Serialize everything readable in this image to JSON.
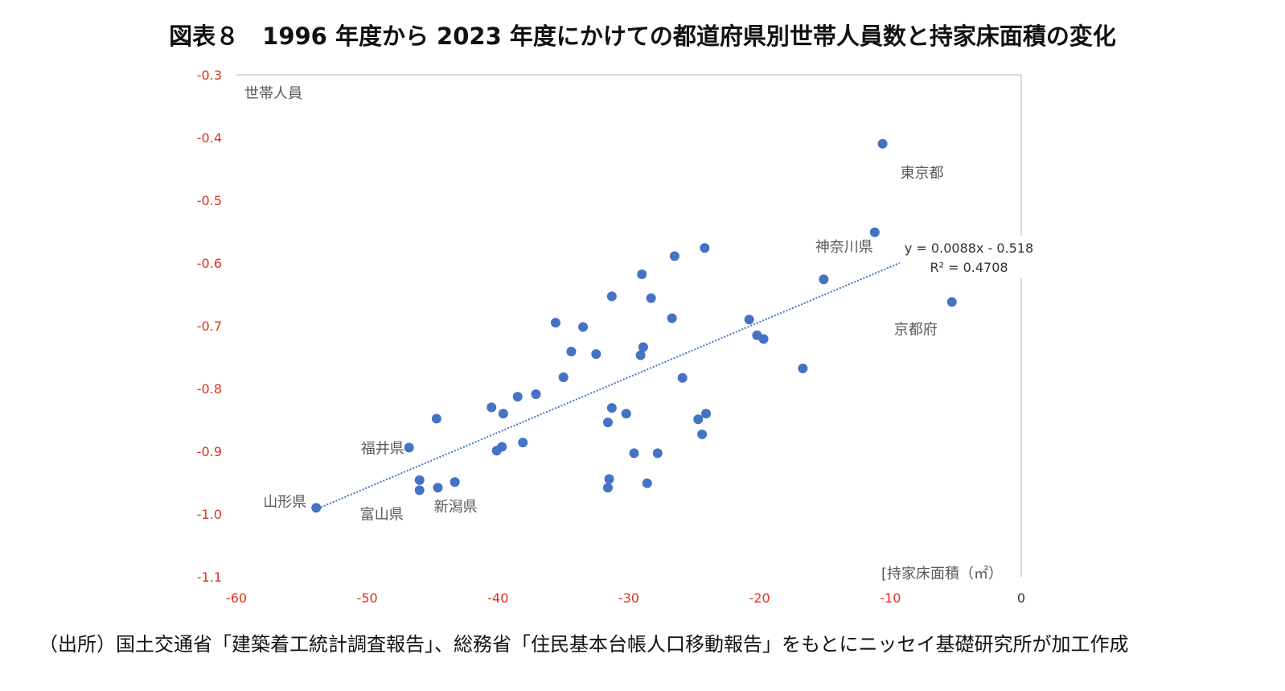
{
  "title": "図表８　1996 年度から 2023 年度にかけての都道府県別世帯人員数と持家床面積の変化",
  "source": "（出所）国土交通省「建築着工統計調査報告」、総務省「住民基本台帳人口移動報告」をもとにニッセイ基礎研究所が加工作成",
  "colors": {
    "point": "#4472C4",
    "trendline": "#4472C4",
    "tick_label": "#E0301E",
    "axis_line": "#D9D9D9",
    "annotation": "#595959"
  },
  "chart_data": {
    "type": "scatter",
    "title": "1996 年度から 2023 年度にかけての都道府県別世帯人員数と持家床面積の変化",
    "xlabel": "[持家床面積（㎡）",
    "ylabel": "世帯人員",
    "xlim": [
      -60,
      0
    ],
    "ylim": [
      -1.1,
      -0.3
    ],
    "x_ticks": [
      "-60",
      "-50",
      "-40",
      "-30",
      "-20",
      "-10",
      "0"
    ],
    "y_ticks": [
      "-0.3",
      "-0.4",
      "-0.5",
      "-0.6",
      "-0.7",
      "-0.8",
      "-0.9",
      "-1.0",
      "-1.1"
    ],
    "grid": false,
    "legend": null,
    "trendline": {
      "type": "linear",
      "equation": "y = 0.0088x - 0.518",
      "r_squared": "R² = 0.4708",
      "slope": 0.0088,
      "intercept": -0.518,
      "x_range": [
        -54,
        -9.3
      ]
    },
    "labels": [
      {
        "text": "東京都",
        "x": -10.6,
        "y": -0.41
      },
      {
        "text": "神奈川県",
        "x": -11.2,
        "y": -0.551
      },
      {
        "text": "京都府",
        "x": -5.3,
        "y": -0.662
      },
      {
        "text": "福井県",
        "x": -46.8,
        "y": -0.894
      },
      {
        "text": "山形県",
        "x": -53.9,
        "y": -0.99
      },
      {
        "text": "富山県",
        "x": -46.0,
        "y": -0.962
      },
      {
        "text": "新潟県",
        "x": -43.3,
        "y": -0.949
      }
    ],
    "points": [
      {
        "x": -10.6,
        "y": -0.41
      },
      {
        "x": -11.2,
        "y": -0.551
      },
      {
        "x": -24.2,
        "y": -0.576
      },
      {
        "x": -26.5,
        "y": -0.589
      },
      {
        "x": -29.0,
        "y": -0.618
      },
      {
        "x": -15.1,
        "y": -0.626
      },
      {
        "x": -31.3,
        "y": -0.653
      },
      {
        "x": -28.3,
        "y": -0.656
      },
      {
        "x": -5.3,
        "y": -0.662
      },
      {
        "x": -26.7,
        "y": -0.688
      },
      {
        "x": -20.8,
        "y": -0.69
      },
      {
        "x": -35.6,
        "y": -0.695
      },
      {
        "x": -33.5,
        "y": -0.702
      },
      {
        "x": -20.2,
        "y": -0.715
      },
      {
        "x": -19.7,
        "y": -0.721
      },
      {
        "x": -28.9,
        "y": -0.734
      },
      {
        "x": -34.4,
        "y": -0.741
      },
      {
        "x": -32.5,
        "y": -0.745
      },
      {
        "x": -29.1,
        "y": -0.747
      },
      {
        "x": -16.7,
        "y": -0.768
      },
      {
        "x": -35.0,
        "y": -0.782
      },
      {
        "x": -25.9,
        "y": -0.783
      },
      {
        "x": -37.1,
        "y": -0.809
      },
      {
        "x": -38.5,
        "y": -0.813
      },
      {
        "x": -40.5,
        "y": -0.83
      },
      {
        "x": -31.3,
        "y": -0.831
      },
      {
        "x": -39.6,
        "y": -0.84
      },
      {
        "x": -30.2,
        "y": -0.84
      },
      {
        "x": -24.1,
        "y": -0.84
      },
      {
        "x": -24.7,
        "y": -0.849
      },
      {
        "x": -44.7,
        "y": -0.848
      },
      {
        "x": -31.6,
        "y": -0.854
      },
      {
        "x": -24.4,
        "y": -0.873
      },
      {
        "x": -38.1,
        "y": -0.886
      },
      {
        "x": -46.8,
        "y": -0.894
      },
      {
        "x": -39.7,
        "y": -0.893
      },
      {
        "x": -40.1,
        "y": -0.899
      },
      {
        "x": -29.6,
        "y": -0.903
      },
      {
        "x": -27.8,
        "y": -0.903
      },
      {
        "x": -46.0,
        "y": -0.946
      },
      {
        "x": -31.5,
        "y": -0.944
      },
      {
        "x": -43.3,
        "y": -0.949
      },
      {
        "x": -28.6,
        "y": -0.951
      },
      {
        "x": -44.6,
        "y": -0.958
      },
      {
        "x": -31.6,
        "y": -0.958
      },
      {
        "x": -46.0,
        "y": -0.962
      },
      {
        "x": -53.9,
        "y": -0.99
      }
    ]
  }
}
